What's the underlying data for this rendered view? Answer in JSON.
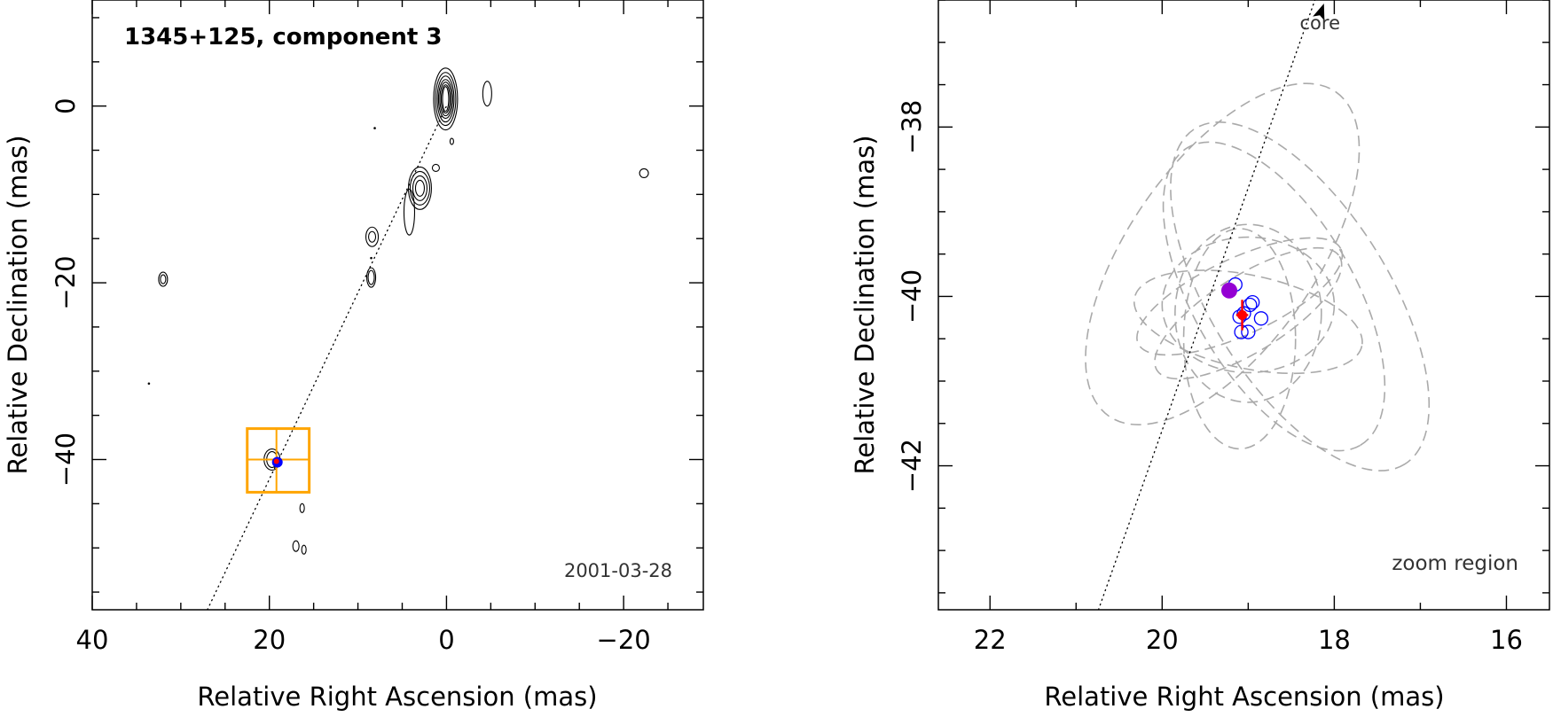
{
  "chart_data": [
    {
      "type": "contour",
      "title": "1345+125, component 3",
      "annotation": "2001-03-28",
      "xlabel": "Relative Right Ascension (mas)",
      "ylabel": "Relative Declination (mas)",
      "xlim": [
        40,
        -29
      ],
      "ylim": [
        -57,
        12
      ],
      "xticks": [
        40,
        20,
        0,
        -20
      ],
      "yticks": [
        0,
        -20,
        -40
      ],
      "jet_axis": [
        [
          27,
          -57
        ],
        [
          0,
          0
        ]
      ],
      "jet_axis_style": "dotted",
      "contour_groups": [
        {
          "name": "core",
          "center": [
            0.1,
            0.8
          ],
          "levels": [
            [
              0.35,
              1.4
            ],
            [
              0.5,
              1.6
            ],
            [
              0.65,
              1.9
            ],
            [
              0.8,
              2.2
            ],
            [
              0.95,
              2.6
            ],
            [
              1.15,
              3.0
            ],
            [
              1.35,
              3.5
            ]
          ]
        },
        {
          "name": "jet-knot",
          "center": [
            3.0,
            -9.3
          ],
          "levels": [
            [
              0.5,
              0.9
            ],
            [
              0.8,
              1.4
            ],
            [
              1.1,
              1.9
            ],
            [
              1.3,
              2.4
            ]
          ]
        },
        {
          "name": "jet-extension",
          "center": [
            4.2,
            -12.0
          ],
          "levels": [
            [
              0.6,
              2.6
            ]
          ]
        },
        {
          "name": "knot-8-15",
          "center": [
            8.4,
            -14.8
          ],
          "levels": [
            [
              0.4,
              0.6
            ],
            [
              0.7,
              1.1
            ]
          ]
        },
        {
          "name": "knot-8-19",
          "center": [
            8.5,
            -19.4
          ],
          "levels": [
            [
              0.35,
              0.8
            ],
            [
              0.5,
              1.1
            ]
          ]
        },
        {
          "name": "blob-32-20",
          "center": [
            32.0,
            -19.6
          ],
          "levels": [
            [
              0.3,
              0.5
            ],
            [
              0.5,
              0.8
            ]
          ]
        },
        {
          "name": "blob-west-5",
          "center": [
            -4.6,
            1.4
          ],
          "levels": [
            [
              0.5,
              1.4
            ]
          ]
        },
        {
          "name": "blob-west-22",
          "center": [
            -22.3,
            -7.6
          ],
          "levels": [
            [
              0.5,
              0.5
            ]
          ]
        },
        {
          "name": "spot-1-7",
          "center": [
            1.2,
            -7.0
          ],
          "levels": [
            [
              0.4,
              0.4
            ]
          ]
        },
        {
          "name": "spot-n0-4",
          "center": [
            -0.6,
            -4.0
          ],
          "levels": [
            [
              0.2,
              0.35
            ]
          ]
        },
        {
          "name": "blob-c3",
          "center": [
            19.7,
            -40.0
          ],
          "levels": [
            [
              0.6,
              0.9
            ],
            [
              0.9,
              1.2
            ]
          ]
        },
        {
          "name": "blob-16-45",
          "center": [
            16.3,
            -45.5
          ],
          "levels": [
            [
              0.25,
              0.5
            ]
          ]
        },
        {
          "name": "blob-17-50",
          "center": [
            17.0,
            -49.8
          ],
          "levels": [
            [
              0.35,
              0.6
            ]
          ]
        },
        {
          "name": "blob-16-50",
          "center": [
            16.1,
            -50.2
          ],
          "levels": [
            [
              0.25,
              0.5
            ]
          ]
        }
      ],
      "dots": [
        [
          8.1,
          -2.5
        ],
        [
          33.6,
          -31.4
        ],
        [
          8.5,
          -17.2
        ]
      ],
      "zoom_box": {
        "x": [
          22.5,
          15.5
        ],
        "y": [
          -36.5,
          -43.7
        ],
        "crosshair": [
          19.2,
          -40.0
        ],
        "color": "#ffa500"
      },
      "component_position": [
        19.1,
        -40.3
      ],
      "marker_colors": {
        "measured": "#0000ff",
        "fit": "#ff0000",
        "mean": "#9400d3"
      }
    },
    {
      "type": "scatter",
      "annotation_axis": "core",
      "annotation_region": "zoom region",
      "xlabel": "Relative Right Ascension (mas)",
      "ylabel": "Relative Declination (mas)",
      "xlim": [
        22.6,
        15.5
      ],
      "ylim": [
        -43.7,
        -36.5
      ],
      "xticks": [
        22,
        20,
        18,
        16
      ],
      "yticks": [
        -38,
        -40,
        -42
      ],
      "jet_axis": [
        [
          20.74,
          -43.7
        ],
        [
          18.12,
          -36.2
        ]
      ],
      "jet_axis_style": "dotted",
      "ellipses_style": "dashed",
      "ellipses_color": "#aaaaaa",
      "ellipses": [
        {
          "cx": 19.3,
          "cy": -39.5,
          "rx": 2.3,
          "ry": 1.1,
          "angle": 55
        },
        {
          "cx": 18.7,
          "cy": -40.0,
          "rx": 2.0,
          "ry": 0.95,
          "angle": -60
        },
        {
          "cx": 18.4,
          "cy": -40.0,
          "rx": 2.3,
          "ry": 1.05,
          "angle": -58
        },
        {
          "cx": 19.1,
          "cy": -40.5,
          "rx": 0.65,
          "ry": 1.3,
          "angle": 0
        },
        {
          "cx": 19.0,
          "cy": -40.2,
          "rx": 0.85,
          "ry": 1.05,
          "angle": 0
        },
        {
          "cx": 19.1,
          "cy": -40.0,
          "rx": 1.3,
          "ry": 0.45,
          "angle": 25
        },
        {
          "cx": 19.0,
          "cy": -40.3,
          "rx": 1.35,
          "ry": 0.55,
          "angle": -12
        },
        {
          "cx": 19.0,
          "cy": -40.1,
          "rx": 1.0,
          "ry": 0.8,
          "angle": 0
        },
        {
          "cx": 19.0,
          "cy": -40.2,
          "rx": 1.25,
          "ry": 0.45,
          "angle": 32
        }
      ],
      "measured_points": {
        "color": "#0000ff",
        "x": [
          19.15,
          18.95,
          19.05,
          18.85,
          19.08,
          19.0,
          19.1,
          18.98
        ],
        "y": [
          -39.86,
          -40.07,
          -40.2,
          -40.26,
          -40.42,
          -40.42,
          -40.24,
          -40.1
        ]
      },
      "fit_point": {
        "color": "#ff0000",
        "x": 19.07,
        "y": -40.22,
        "err_x": 0.07,
        "err_y": 0.18
      },
      "mean_point": {
        "color": "#9400d3",
        "x": 19.22,
        "y": -39.93
      }
    }
  ]
}
